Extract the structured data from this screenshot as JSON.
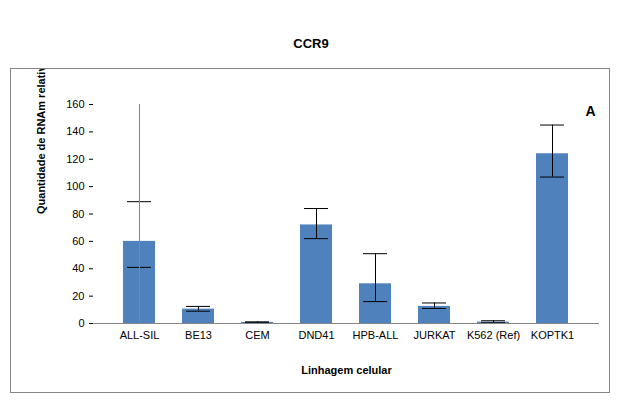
{
  "chart_data": {
    "type": "bar",
    "title": "CCR9",
    "xlabel": "Linhagem celular",
    "ylabel": "Quantidade de RNAm relativa",
    "annotation": "A",
    "categories": [
      "ALL-SIL",
      "BE13",
      "CEM",
      "DND41",
      "HPB-ALL",
      "JURKAT",
      "K562 (Ref)",
      "KOPTK1"
    ],
    "values": [
      60,
      10.5,
      0.8,
      72,
      29,
      12.5,
      1,
      124
    ],
    "error_low": [
      41,
      9,
      0.5,
      62,
      16,
      11,
      0.5,
      107
    ],
    "error_high": [
      89,
      12.5,
      1.2,
      84,
      51,
      15,
      2,
      145
    ],
    "color": "#4f81bd",
    "ylim": [
      0,
      160
    ],
    "yticks": [
      0,
      20,
      40,
      60,
      80,
      100,
      120,
      140,
      160
    ],
    "grid": false
  }
}
